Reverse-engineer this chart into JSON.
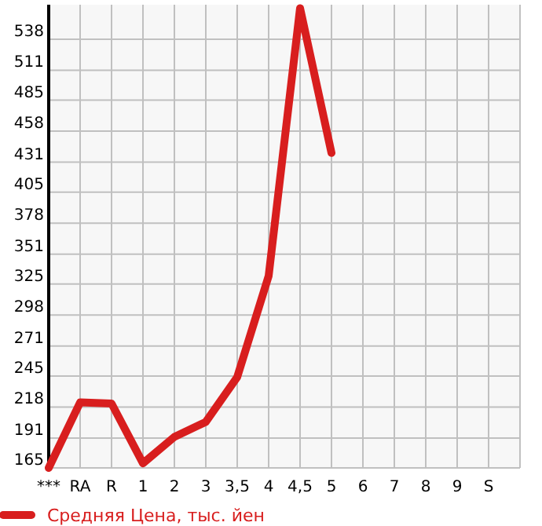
{
  "chart_data": {
    "type": "line",
    "categories": [
      "***",
      "RA",
      "R",
      "1",
      "2",
      "3",
      "3,5",
      "4",
      "4,5",
      "5",
      "6",
      "7",
      "8",
      "9",
      "S",
      null
    ],
    "series": [
      {
        "name": "Средняя Цена, тыс. йен",
        "color": "#d81e1e",
        "values": [
          165,
          222,
          221,
          169,
          192,
          205,
          244,
          332,
          565,
          439,
          null,
          null,
          null,
          null,
          null,
          null
        ]
      }
    ],
    "ylim": [
      165,
      568
    ],
    "yticks": [
      165,
      191,
      218,
      245,
      271,
      298,
      325,
      351,
      378,
      405,
      431,
      458,
      485,
      511,
      538
    ],
    "grid": true,
    "legend": "bottom",
    "marker": "none",
    "line_style": "solid"
  }
}
